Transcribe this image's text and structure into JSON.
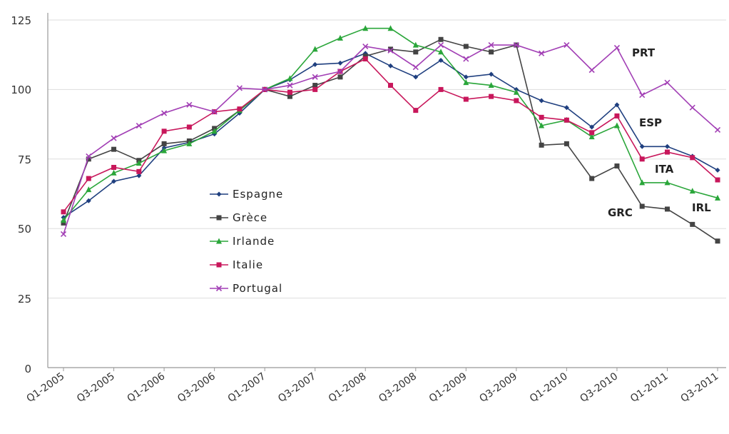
{
  "chart_data": {
    "type": "line",
    "title": "",
    "xlabel": "",
    "ylabel": "",
    "ylim": [
      0,
      125
    ],
    "y_ticks": [
      "0",
      "25",
      "50",
      "75",
      "100",
      "125"
    ],
    "x_tick_labels": [
      "Q1-2005",
      "Q3-2005",
      "Q1-2006",
      "Q3-2006",
      "Q1-2007",
      "Q3-2007",
      "Q1-2008",
      "Q3-2008",
      "Q1-2009",
      "Q3-2009",
      "Q1-2010",
      "Q3-2010",
      "Q1-2011",
      "Q3-2011"
    ],
    "categories": [
      "Q1-2005",
      "Q2-2005",
      "Q3-2005",
      "Q4-2005",
      "Q1-2006",
      "Q2-2006",
      "Q3-2006",
      "Q4-2006",
      "Q1-2007",
      "Q2-2007",
      "Q3-2007",
      "Q4-2007",
      "Q1-2008",
      "Q2-2008",
      "Q3-2008",
      "Q4-2008",
      "Q1-2009",
      "Q2-2009",
      "Q3-2009",
      "Q4-2009",
      "Q1-2010",
      "Q2-2010",
      "Q3-2010",
      "Q4-2010",
      "Q1-2011",
      "Q2-2011",
      "Q3-2011"
    ],
    "grid": "horizontal",
    "legend_position": "center-left",
    "series": [
      {
        "name": "Espagne",
        "short": "ESP",
        "color": "#1f3f7f",
        "marker": "diamond",
        "values": [
          54,
          60,
          67,
          69,
          79,
          81,
          84,
          91.5,
          100,
          103.5,
          109,
          109.5,
          113,
          108.5,
          104.5,
          110.5,
          104.5,
          105.5,
          100,
          96,
          93.5,
          86.5,
          94.5,
          79.5,
          79.5,
          76,
          71
        ]
      },
      {
        "name": "Grèce",
        "short": "GRC",
        "color": "#444444",
        "marker": "square",
        "values": [
          52,
          75,
          78.5,
          74.5,
          80.5,
          81.5,
          86,
          92.5,
          100,
          97.5,
          101.5,
          104.5,
          112,
          114.5,
          113.5,
          118,
          115.5,
          113.5,
          116,
          80,
          80.5,
          68,
          72.5,
          58,
          57,
          51.5,
          45.5
        ]
      },
      {
        "name": "Irlande",
        "short": "IRL",
        "color": "#2aa63a",
        "marker": "triangle",
        "values": [
          53,
          64,
          70,
          73.5,
          78,
          80.5,
          85,
          92.5,
          100,
          104,
          114.5,
          118.5,
          122,
          122,
          116,
          113.5,
          102.5,
          101.5,
          99,
          87,
          89,
          83,
          87,
          66.5,
          66.5,
          63.5,
          61
        ]
      },
      {
        "name": "Italie",
        "short": "ITA",
        "color": "#c8175b",
        "marker": "square",
        "values": [
          56,
          68,
          72,
          70.5,
          85,
          86.5,
          92,
          93,
          100,
          99,
          100,
          106.5,
          111,
          101.5,
          92.5,
          100,
          96.5,
          97.5,
          96,
          90,
          89,
          84.5,
          90.5,
          75,
          77.5,
          75.5,
          67.5
        ]
      },
      {
        "name": "Portugal",
        "short": "PRT",
        "color": "#a23fb5",
        "marker": "x",
        "values": [
          48,
          76,
          82.5,
          87,
          91.5,
          94.5,
          92,
          100.5,
          100,
          101.5,
          104.5,
          106.5,
          115.5,
          114,
          108,
          116,
          111,
          116,
          116,
          113,
          116,
          107,
          115,
          98,
          102.5,
          93.5,
          85.5
        ]
      }
    ]
  }
}
